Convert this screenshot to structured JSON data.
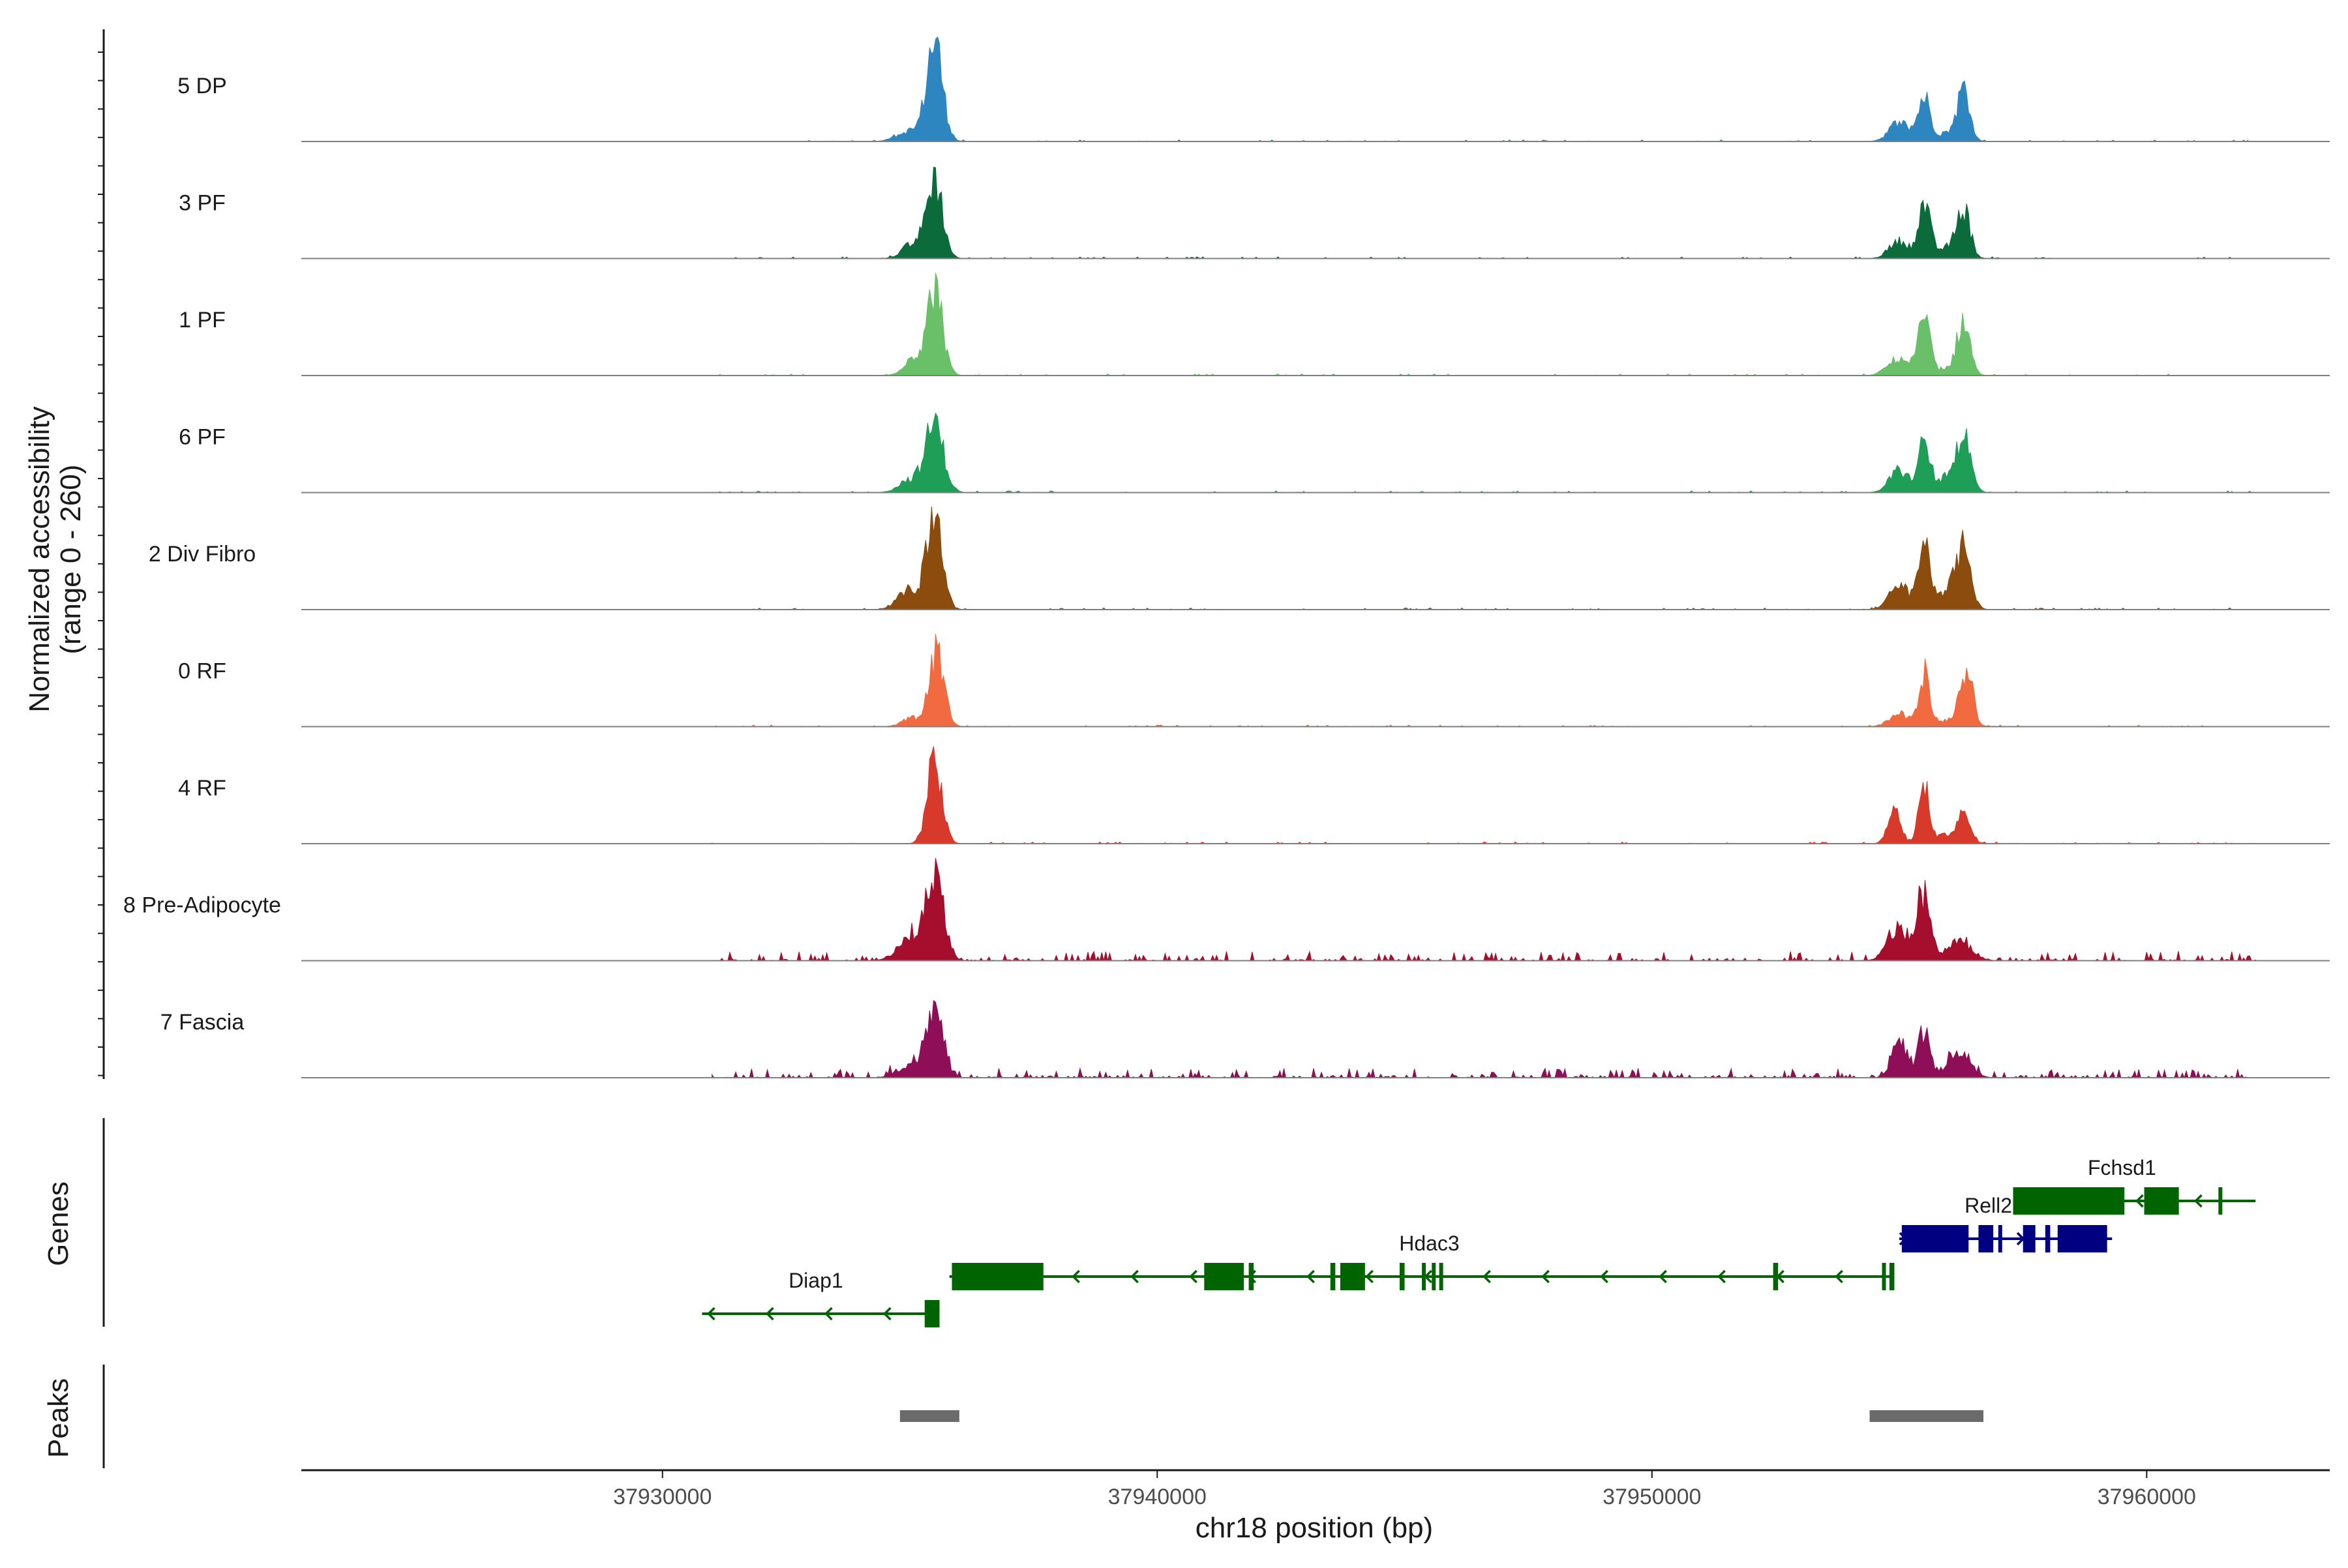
{
  "chart_data": {
    "type": "area",
    "title": "",
    "ylabel_line1": "Normalized accessibility",
    "ylabel_line2": "(range 0 - 260)",
    "ylim": [
      0,
      260
    ],
    "xlabel": "chr18 position (bp)",
    "xlim": [
      37922700,
      37963700
    ],
    "x_ticks": [
      37930000,
      37940000,
      37950000,
      37960000
    ],
    "x_tick_labels": [
      "37930000",
      "37940000",
      "37950000",
      "37960000"
    ],
    "noise_extent": [
      37931000,
      37962200
    ],
    "tracks": [
      {
        "name": "5 DP",
        "color": "#2E86C1",
        "peaks": [
          [
            37935500,
            230,
            160
          ],
          [
            37935000,
            25,
            250
          ],
          [
            37955000,
            45,
            200
          ],
          [
            37955500,
            100,
            120
          ],
          [
            37956000,
            20,
            250
          ],
          [
            37956300,
            115,
            120
          ]
        ]
      },
      {
        "name": "3 PF",
        "color": "#0B6B3A",
        "peaks": [
          [
            37935500,
            185,
            160
          ],
          [
            37935050,
            35,
            200
          ],
          [
            37955000,
            40,
            200
          ],
          [
            37955500,
            120,
            120
          ],
          [
            37956000,
            25,
            250
          ],
          [
            37956300,
            105,
            130
          ]
        ]
      },
      {
        "name": "1 PF",
        "color": "#6ABF69",
        "peaks": [
          [
            37935500,
            195,
            160
          ],
          [
            37935050,
            40,
            180
          ],
          [
            37955000,
            40,
            220
          ],
          [
            37955500,
            125,
            120
          ],
          [
            37956000,
            15,
            250
          ],
          [
            37956300,
            120,
            130
          ]
        ]
      },
      {
        "name": "6 PF",
        "color": "#1E9E57",
        "peaks": [
          [
            37935500,
            160,
            180
          ],
          [
            37935000,
            30,
            220
          ],
          [
            37955000,
            50,
            200
          ],
          [
            37955500,
            105,
            120
          ],
          [
            37956000,
            35,
            250
          ],
          [
            37956300,
            120,
            140
          ]
        ]
      },
      {
        "name": "2 Div Fibro",
        "color": "#8B4C0D",
        "peaks": [
          [
            37935500,
            210,
            160
          ],
          [
            37935000,
            45,
            230
          ],
          [
            37955000,
            55,
            200
          ],
          [
            37955500,
            145,
            120
          ],
          [
            37956000,
            45,
            250
          ],
          [
            37956300,
            120,
            140
          ]
        ]
      },
      {
        "name": "0 RF",
        "color": "#F26B40",
        "peaks": [
          [
            37935550,
            170,
            150
          ],
          [
            37935050,
            20,
            200
          ],
          [
            37955000,
            30,
            200
          ],
          [
            37955500,
            120,
            110
          ],
          [
            37956000,
            15,
            250
          ],
          [
            37956350,
            130,
            130
          ]
        ]
      },
      {
        "name": "4 RF",
        "color": "#D73A2A",
        "peaks": [
          [
            37935500,
            190,
            150
          ],
          [
            37954900,
            75,
            130
          ],
          [
            37955500,
            125,
            110
          ],
          [
            37956000,
            20,
            250
          ],
          [
            37956300,
            55,
            140
          ]
        ]
      },
      {
        "name": "8 Pre-Adipocyte",
        "color": "#A50F2D",
        "peaks": [
          [
            37935500,
            190,
            180
          ],
          [
            37935000,
            50,
            250
          ],
          [
            37955000,
            75,
            220
          ],
          [
            37955500,
            150,
            120
          ],
          [
            37956200,
            45,
            250
          ]
        ]
      },
      {
        "name": "7 Fascia",
        "color": "#8E0F57",
        "peaks": [
          [
            37935500,
            155,
            170
          ],
          [
            37935000,
            25,
            250
          ],
          [
            37955000,
            90,
            150
          ],
          [
            37955500,
            110,
            120
          ],
          [
            37956200,
            65,
            220
          ]
        ]
      }
    ],
    "genes_track_label": "Genes",
    "peaks_track_label": "Peaks",
    "genes": [
      {
        "name": "Diap1",
        "strand": "-",
        "row": 3,
        "color": "#006400",
        "label_x": 37933100,
        "span": [
          37930800,
          37935600
        ],
        "exons": [
          [
            37935300,
            37935600
          ]
        ]
      },
      {
        "name": "Hdac3",
        "strand": "-",
        "row": 2,
        "color": "#006400",
        "label_x": 37945500,
        "span": [
          37935800,
          37954900
        ],
        "exons": [
          [
            37935850,
            37937700
          ],
          [
            37940950,
            37941750
          ],
          [
            37941850,
            37941950
          ],
          [
            37943500,
            37943600
          ],
          [
            37943700,
            37944200
          ],
          [
            37944900,
            37945000
          ],
          [
            37945350,
            37945400
          ],
          [
            37945550,
            37945600
          ],
          [
            37945700,
            37945750
          ],
          [
            37952450,
            37952550
          ],
          [
            37954650,
            37954700
          ],
          [
            37954800,
            37954900
          ]
        ]
      },
      {
        "name": "Rell2",
        "strand": "+",
        "row": 1,
        "color": "#000080",
        "label_x": 37956800,
        "span": [
          37955000,
          37959300
        ],
        "exons": [
          [
            37955050,
            37956400
          ],
          [
            37956600,
            37956900
          ],
          [
            37957000,
            37957050
          ],
          [
            37957500,
            37957750
          ],
          [
            37957950,
            37958050
          ],
          [
            37958200,
            37959200
          ]
        ]
      },
      {
        "name": "Fchsd1",
        "strand": "-",
        "row": 0,
        "color": "#006400",
        "label_x": 37959500,
        "span": [
          37957300,
          37962200
        ],
        "exons": [
          [
            37957300,
            37959550
          ],
          [
            37959950,
            37960650
          ],
          [
            37961450,
            37961500
          ]
        ]
      }
    ],
    "peak_regions": [
      [
        37934800,
        37936000
      ],
      [
        37954400,
        37956700
      ]
    ]
  }
}
